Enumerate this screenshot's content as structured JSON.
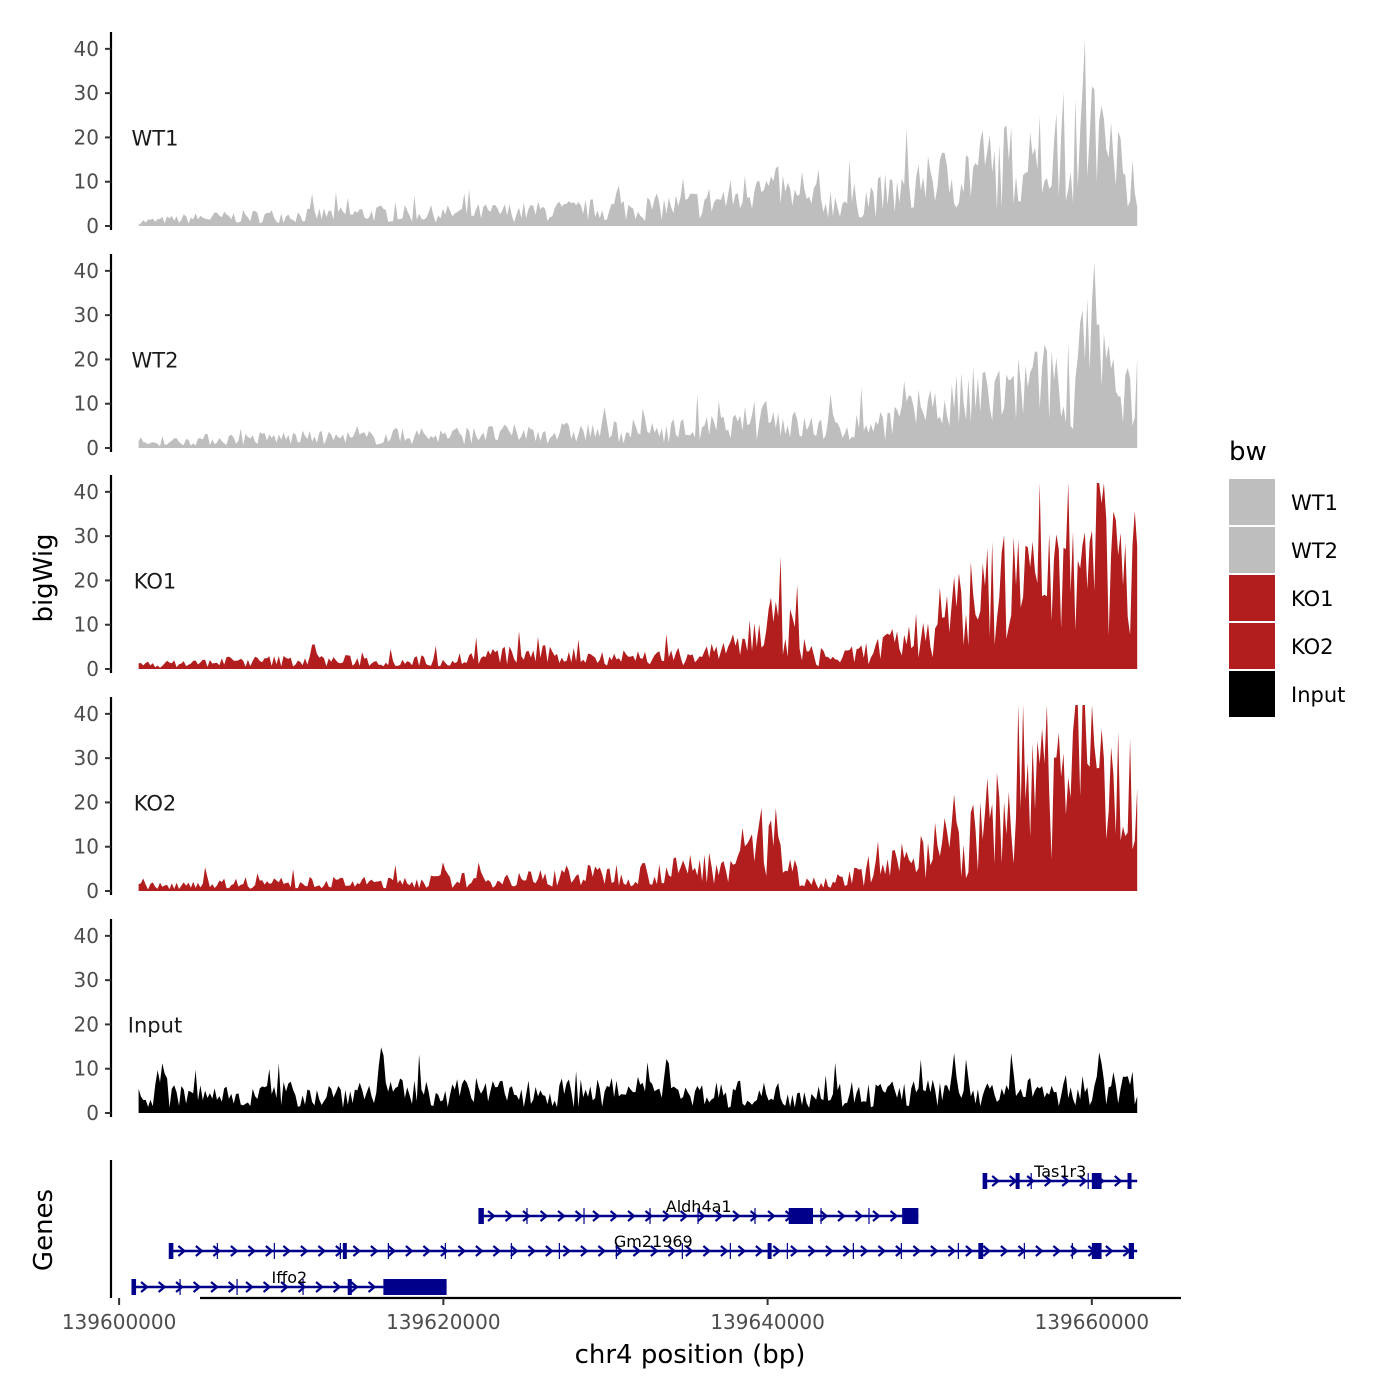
{
  "chart_data": {
    "type": "area",
    "ylabel": "bigWig",
    "xlabel": "chr4 position (bp)",
    "genes_label": "Genes",
    "ylim": [
      0,
      42
    ],
    "y_ticks": [
      0,
      10,
      20,
      30,
      40
    ],
    "xlim": [
      139599500,
      139665500
    ],
    "x_ticks": [
      139600000,
      139620000,
      139640000,
      139660000
    ],
    "x_tick_labels": [
      "139600000",
      "139620000",
      "139640000",
      "139660000"
    ],
    "data_range": [
      139601200,
      139662800
    ],
    "legend": {
      "title": "bw",
      "entries": [
        {
          "label": "WT1",
          "color": "#bebebe"
        },
        {
          "label": "WT2",
          "color": "#bebebe"
        },
        {
          "label": "KO1",
          "color": "#b21e1e"
        },
        {
          "label": "KO2",
          "color": "#b21e1e"
        },
        {
          "label": "Input",
          "color": "#000000"
        }
      ]
    },
    "series": [
      {
        "name": "WT1",
        "color": "#bebebe",
        "anchors": [
          [
            139601200,
            1
          ],
          [
            139605000,
            2
          ],
          [
            139610000,
            2.5
          ],
          [
            139615000,
            3
          ],
          [
            139620000,
            3
          ],
          [
            139625000,
            3.5
          ],
          [
            139630000,
            4
          ],
          [
            139635000,
            5
          ],
          [
            139638000,
            7
          ],
          [
            139640000,
            10
          ],
          [
            139642000,
            6
          ],
          [
            139645000,
            6
          ],
          [
            139648000,
            8
          ],
          [
            139650000,
            10
          ],
          [
            139652000,
            13
          ],
          [
            139655000,
            15
          ],
          [
            139657000,
            16
          ],
          [
            139659000,
            18
          ],
          [
            139660000,
            24
          ],
          [
            139661000,
            17
          ],
          [
            139662800,
            14
          ]
        ],
        "peaks": [
          [
            139639500,
            12
          ],
          [
            139641000,
            10
          ],
          [
            139650000,
            16
          ],
          [
            139653500,
            17
          ],
          [
            139656500,
            21
          ],
          [
            139660000,
            32
          ],
          [
            139661200,
            26
          ]
        ]
      },
      {
        "name": "WT2",
        "color": "#bebebe",
        "anchors": [
          [
            139601200,
            1
          ],
          [
            139605000,
            2
          ],
          [
            139610000,
            2.5
          ],
          [
            139615000,
            2.5
          ],
          [
            139620000,
            3
          ],
          [
            139625000,
            3.5
          ],
          [
            139630000,
            4
          ],
          [
            139635000,
            4.5
          ],
          [
            139638000,
            5
          ],
          [
            139640000,
            8
          ],
          [
            139642000,
            5
          ],
          [
            139645000,
            5
          ],
          [
            139648000,
            7
          ],
          [
            139650000,
            9
          ],
          [
            139652000,
            11
          ],
          [
            139655000,
            14
          ],
          [
            139657000,
            15
          ],
          [
            139659000,
            17
          ],
          [
            139660000,
            23
          ],
          [
            139661000,
            16
          ],
          [
            139662800,
            14
          ]
        ],
        "peaks": [
          [
            139639900,
            10
          ],
          [
            139650000,
            16
          ],
          [
            139655000,
            17
          ],
          [
            139657800,
            22
          ],
          [
            139659300,
            34
          ],
          [
            139660100,
            34
          ],
          [
            139660800,
            26
          ]
        ]
      },
      {
        "name": "KO1",
        "color": "#b21e1e",
        "anchors": [
          [
            139601200,
            1
          ],
          [
            139605000,
            1.5
          ],
          [
            139610000,
            2
          ],
          [
            139615000,
            2
          ],
          [
            139620000,
            2
          ],
          [
            139622000,
            3
          ],
          [
            139625000,
            3.5
          ],
          [
            139630000,
            3
          ],
          [
            139635000,
            3
          ],
          [
            139638000,
            5
          ],
          [
            139640000,
            11
          ],
          [
            139641500,
            9
          ],
          [
            139643000,
            2
          ],
          [
            139645000,
            3
          ],
          [
            139648000,
            6
          ],
          [
            139650000,
            10
          ],
          [
            139652000,
            15
          ],
          [
            139655000,
            20
          ],
          [
            139657000,
            24
          ],
          [
            139659000,
            26
          ],
          [
            139660000,
            32
          ],
          [
            139661000,
            28
          ],
          [
            139662800,
            31
          ]
        ],
        "peaks": [
          [
            139612000,
            7
          ],
          [
            139640500,
            16
          ],
          [
            139651500,
            23
          ],
          [
            139656000,
            36
          ],
          [
            139659500,
            38
          ],
          [
            139661500,
            40
          ]
        ]
      },
      {
        "name": "KO2",
        "color": "#b21e1e",
        "anchors": [
          [
            139601200,
            1
          ],
          [
            139605000,
            2
          ],
          [
            139610000,
            2
          ],
          [
            139615000,
            2
          ],
          [
            139620000,
            2.5
          ],
          [
            139625000,
            3
          ],
          [
            139630000,
            4
          ],
          [
            139635000,
            5
          ],
          [
            139638000,
            7
          ],
          [
            139639000,
            12
          ],
          [
            139640000,
            13
          ],
          [
            139641000,
            6
          ],
          [
            139643000,
            2
          ],
          [
            139645000,
            3
          ],
          [
            139648000,
            6
          ],
          [
            139650000,
            12
          ],
          [
            139652000,
            10
          ],
          [
            139654000,
            18
          ],
          [
            139656000,
            22
          ],
          [
            139658000,
            27
          ],
          [
            139660000,
            34
          ],
          [
            139661000,
            27
          ],
          [
            139662800,
            20
          ]
        ],
        "peaks": [
          [
            139639500,
            16
          ],
          [
            139640600,
            16
          ],
          [
            139651500,
            25
          ],
          [
            139657000,
            36
          ],
          [
            139660000,
            40
          ]
        ]
      },
      {
        "name": "Input",
        "color": "#000000",
        "anchors": [
          [
            139601200,
            4
          ],
          [
            139610000,
            4.5
          ],
          [
            139620000,
            5
          ],
          [
            139630000,
            5
          ],
          [
            139640000,
            4.5
          ],
          [
            139650000,
            5
          ],
          [
            139655000,
            5
          ],
          [
            139662800,
            6
          ]
        ],
        "peaks": [
          [
            139602700,
            13
          ],
          [
            139616200,
            18
          ],
          [
            139633800,
            15
          ],
          [
            139651500,
            14
          ],
          [
            139660500,
            16
          ]
        ]
      }
    ],
    "genes": [
      {
        "name": "Tas1r3",
        "start": 139653300,
        "end": 139662800,
        "exons": [
          [
            139653300,
            139653500
          ],
          [
            139655300,
            139655450
          ],
          [
            139660000,
            139660600
          ],
          [
            139662200,
            139662450
          ]
        ]
      },
      {
        "name": "Aldh4a1",
        "start": 139622200,
        "end": 139649300,
        "exons": [
          [
            139622200,
            139622500
          ],
          [
            139641300,
            139642800
          ],
          [
            139648300,
            139649300
          ]
        ]
      },
      {
        "name": "Gm21969",
        "start": 139603100,
        "end": 139662800,
        "exons": [
          [
            139603100,
            139603300
          ],
          [
            139613800,
            139614000
          ],
          [
            139640000,
            139640200
          ],
          [
            139653000,
            139653300
          ],
          [
            139660000,
            139660600
          ],
          [
            139662300,
            139662600
          ]
        ]
      },
      {
        "name": "Iffo2",
        "start": 139600800,
        "end": 139620200,
        "exons": [
          [
            139600800,
            139601000
          ],
          [
            139614100,
            139614300
          ],
          [
            139616300,
            139620200
          ]
        ]
      }
    ]
  }
}
